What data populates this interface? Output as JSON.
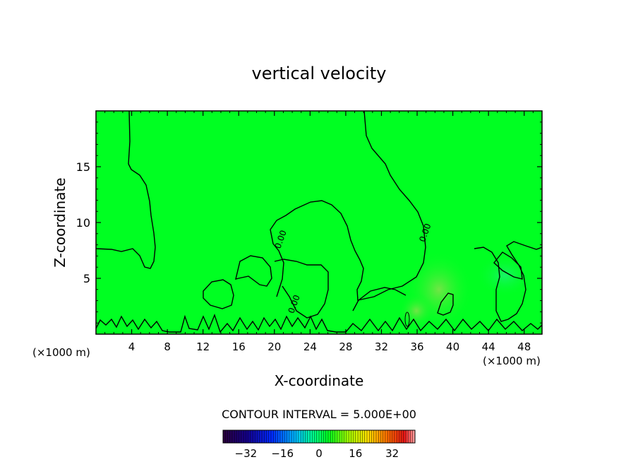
{
  "chart_data": {
    "type": "contour",
    "title": "vertical velocity",
    "xlabel": "X-coordinate",
    "ylabel": "Z-coordinate",
    "x_unit_label_left": "(×1000 m)",
    "x_unit_label_right": "(×1000 m)",
    "xlim": [
      0,
      50
    ],
    "ylim": [
      0,
      20
    ],
    "xticks": [
      4,
      8,
      12,
      16,
      20,
      24,
      28,
      32,
      36,
      40,
      44,
      48
    ],
    "yticks": [
      5,
      10,
      15
    ],
    "contour_interval_text": "CONTOUR INTERVAL = 5.000E+00",
    "contour_level_label": "0.00",
    "contour_labels": [
      {
        "text": "0.00",
        "x": 21.0,
        "y": 8.4
      },
      {
        "text": "0.00",
        "x": 22.5,
        "y": 2.6
      },
      {
        "text": "0.00",
        "x": 37.2,
        "y": 9.0
      }
    ],
    "colorbar": {
      "min": -42,
      "max": 42,
      "ticks": [
        -32,
        -16,
        0,
        16,
        32
      ]
    },
    "background_color": "#00ff22"
  }
}
